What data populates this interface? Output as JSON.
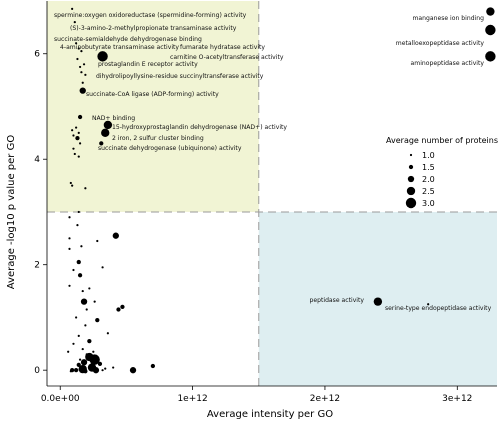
{
  "chart_data": {
    "type": "scatter",
    "xlabel": "Average intensity per GO",
    "ylabel": "Average -log10 p value per GO",
    "xlim": [
      -100000000000.0,
      3300000000000.0
    ],
    "ylim": [
      -0.3,
      7.0
    ],
    "x_ticks": [
      0,
      1000000000000.0,
      2000000000000.0,
      3000000000000.0
    ],
    "x_tick_labels": [
      "0.0e+00",
      "1e+12",
      "2e+12",
      "3e+12"
    ],
    "y_ticks": [
      0,
      2,
      4,
      6
    ],
    "y_tick_labels": [
      "0",
      "2",
      "4",
      "6"
    ],
    "thresholds": {
      "x": 1500000000000.0,
      "y": 3.0
    },
    "region_colors": {
      "top_left": "#f1f4d4",
      "right_low": "#deeef1"
    },
    "legend": {
      "title": "Average number of proteins",
      "placement": "right",
      "values": [
        1.0,
        1.5,
        2.0,
        2.5,
        3.0
      ],
      "labels": [
        "1.0",
        "1.5",
        "2.0",
        "2.5",
        "3.0"
      ]
    },
    "annotations": [
      {
        "label": "spermine:oxygen oxidoreductase (spermidine-forming) activity",
        "x": 90000000000.0,
        "y": 6.85,
        "size": 1.0
      },
      {
        "label": "(S)-3-amino-2-methylpropionate transaminase activity",
        "x": 110000000000.0,
        "y": 6.6,
        "size": 1.0
      },
      {
        "label": "succinate-semialdehyde dehydrogenase binding",
        "x": 120000000000.0,
        "y": 6.2,
        "size": 1.0
      },
      {
        "label": "4-aminobutyrate transaminase activity",
        "x": 140000000000.0,
        "y": 6.1,
        "size": 1.0
      },
      {
        "label": "fumarate hydratase activity",
        "x": 160000000000.0,
        "y": 6.05,
        "size": 1.0
      },
      {
        "label": "carnitine O-acetyltransferase activity",
        "x": 320000000000.0,
        "y": 5.95,
        "size": 3.0
      },
      {
        "label": "prostaglandin E receptor activity",
        "x": 180000000000.0,
        "y": 5.8,
        "size": 1.0
      },
      {
        "label": "dihydrolipoyllysine-residue succinyltransferase activity",
        "x": 190000000000.0,
        "y": 5.6,
        "size": 1.0
      },
      {
        "label": "succinate-CoA ligase (ADP-forming) activity",
        "x": 170000000000.0,
        "y": 5.3,
        "size": 2.0
      },
      {
        "label": "NAD+ binding",
        "x": 150000000000.0,
        "y": 4.8,
        "size": 1.5
      },
      {
        "label": "15-hydroxyprostaglandin dehydrogenase (NAD+) activity",
        "x": 360000000000.0,
        "y": 4.65,
        "size": 2.5
      },
      {
        "label": "2 iron, 2 sulfur cluster binding",
        "x": 340000000000.0,
        "y": 4.5,
        "size": 2.5
      },
      {
        "label": "succinate dehydrogenase (ubiquinone) activity",
        "x": 310000000000.0,
        "y": 4.3,
        "size": 1.5
      },
      {
        "label": "manganese ion binding",
        "x": 3250000000000.0,
        "y": 6.8,
        "size": 2.5
      },
      {
        "label": "metalloexopeptidase activity",
        "x": 3250000000000.0,
        "y": 6.45,
        "size": 3.0
      },
      {
        "label": "aminopeptidase activity",
        "x": 3250000000000.0,
        "y": 5.95,
        "size": 3.0
      },
      {
        "label": "peptidase activity",
        "x": 2400000000000.0,
        "y": 1.3,
        "size": 2.5
      },
      {
        "label": "serine-type endopeptidase activity",
        "x": 2780000000000.0,
        "y": 1.25,
        "size": 1.0
      }
    ],
    "points": [
      {
        "x": 90000000000.0,
        "y": 4.55,
        "size": 1.0
      },
      {
        "x": 100000000000.0,
        "y": 4.45,
        "size": 1.0
      },
      {
        "x": 130000000000.0,
        "y": 4.4,
        "size": 1.5
      },
      {
        "x": 120000000000.0,
        "y": 4.6,
        "size": 1.0
      },
      {
        "x": 140000000000.0,
        "y": 4.5,
        "size": 1.0
      },
      {
        "x": 100000000000.0,
        "y": 4.2,
        "size": 1.0
      },
      {
        "x": 150000000000.0,
        "y": 4.3,
        "size": 1.0
      },
      {
        "x": 110000000000.0,
        "y": 4.1,
        "size": 1.0
      },
      {
        "x": 140000000000.0,
        "y": 4.05,
        "size": 1.0
      },
      {
        "x": 80000000000.0,
        "y": 3.55,
        "size": 1.0
      },
      {
        "x": 90000000000.0,
        "y": 3.5,
        "size": 1.0
      },
      {
        "x": 190000000000.0,
        "y": 3.45,
        "size": 1.0
      },
      {
        "x": 140000000000.0,
        "y": 3.0,
        "size": 1.0
      },
      {
        "x": 150000000000.0,
        "y": 5.75,
        "size": 1.0
      },
      {
        "x": 170000000000.0,
        "y": 5.45,
        "size": 1.0
      },
      {
        "x": 130000000000.0,
        "y": 5.9,
        "size": 1.0
      },
      {
        "x": 160000000000.0,
        "y": 5.65,
        "size": 1.0
      },
      {
        "x": 70000000000.0,
        "y": 2.9,
        "size": 1.0
      },
      {
        "x": 130000000000.0,
        "y": 2.75,
        "size": 1.0
      },
      {
        "x": 70000000000.0,
        "y": 2.5,
        "size": 1.0
      },
      {
        "x": 70000000000.0,
        "y": 2.3,
        "size": 1.0
      },
      {
        "x": 160000000000.0,
        "y": 2.35,
        "size": 1.0
      },
      {
        "x": 420000000000.0,
        "y": 2.55,
        "size": 2.0
      },
      {
        "x": 280000000000.0,
        "y": 2.45,
        "size": 1.0
      },
      {
        "x": 140000000000.0,
        "y": 2.05,
        "size": 1.5
      },
      {
        "x": 320000000000.0,
        "y": 1.95,
        "size": 1.0
      },
      {
        "x": 100000000000.0,
        "y": 1.9,
        "size": 1.0
      },
      {
        "x": 150000000000.0,
        "y": 1.8,
        "size": 1.5
      },
      {
        "x": 70000000000.0,
        "y": 1.6,
        "size": 1.0
      },
      {
        "x": 170000000000.0,
        "y": 1.5,
        "size": 1.0
      },
      {
        "x": 220000000000.0,
        "y": 1.55,
        "size": 1.0
      },
      {
        "x": 180000000000.0,
        "y": 1.3,
        "size": 2.0
      },
      {
        "x": 440000000000.0,
        "y": 1.15,
        "size": 1.5
      },
      {
        "x": 470000000000.0,
        "y": 1.2,
        "size": 1.5
      },
      {
        "x": 260000000000.0,
        "y": 1.3,
        "size": 1.0
      },
      {
        "x": 200000000000.0,
        "y": 1.15,
        "size": 1.0
      },
      {
        "x": 280000000000.0,
        "y": 0.95,
        "size": 1.5
      },
      {
        "x": 120000000000.0,
        "y": 1.0,
        "size": 1.0
      },
      {
        "x": 190000000000.0,
        "y": 0.85,
        "size": 1.0
      },
      {
        "x": 360000000000.0,
        "y": 0.7,
        "size": 1.0
      },
      {
        "x": 140000000000.0,
        "y": 0.65,
        "size": 1.0
      },
      {
        "x": 220000000000.0,
        "y": 0.55,
        "size": 1.5
      },
      {
        "x": 100000000000.0,
        "y": 0.5,
        "size": 1.0
      },
      {
        "x": 170000000000.0,
        "y": 0.4,
        "size": 1.0
      },
      {
        "x": 250000000000.0,
        "y": 0.35,
        "size": 1.0
      },
      {
        "x": 200000000000.0,
        "y": 0.3,
        "size": 1.0
      },
      {
        "x": 220000000000.0,
        "y": 0.25,
        "size": 2.5
      },
      {
        "x": 260000000000.0,
        "y": 0.2,
        "size": 3.0
      },
      {
        "x": 180000000000.0,
        "y": 0.15,
        "size": 2.0
      },
      {
        "x": 140000000000.0,
        "y": 0.1,
        "size": 1.5
      },
      {
        "x": 300000000000.0,
        "y": 0.12,
        "size": 1.5
      },
      {
        "x": 240000000000.0,
        "y": 0.05,
        "size": 2.5
      },
      {
        "x": 170000000000.0,
        "y": 0.02,
        "size": 2.5
      },
      {
        "x": 120000000000.0,
        "y": 0.0,
        "size": 1.5
      },
      {
        "x": 90000000000.0,
        "y": 0.0,
        "size": 1.5
      },
      {
        "x": 270000000000.0,
        "y": 0.0,
        "size": 2.0
      },
      {
        "x": 320000000000.0,
        "y": 0.0,
        "size": 1.0
      },
      {
        "x": 190000000000.0,
        "y": -0.02,
        "size": 1.5
      },
      {
        "x": 60000000000.0,
        "y": 0.35,
        "size": 1.0
      },
      {
        "x": 550000000000.0,
        "y": 0.0,
        "size": 2.0
      },
      {
        "x": 700000000000.0,
        "y": 0.08,
        "size": 1.5
      },
      {
        "x": 340000000000.0,
        "y": 0.03,
        "size": 1.0
      },
      {
        "x": 80000000000.0,
        "y": -0.02,
        "size": 1.0
      },
      {
        "x": 150000000000.0,
        "y": 0.2,
        "size": 1.0
      },
      {
        "x": 400000000000.0,
        "y": 0.05,
        "size": 1.0
      }
    ]
  }
}
